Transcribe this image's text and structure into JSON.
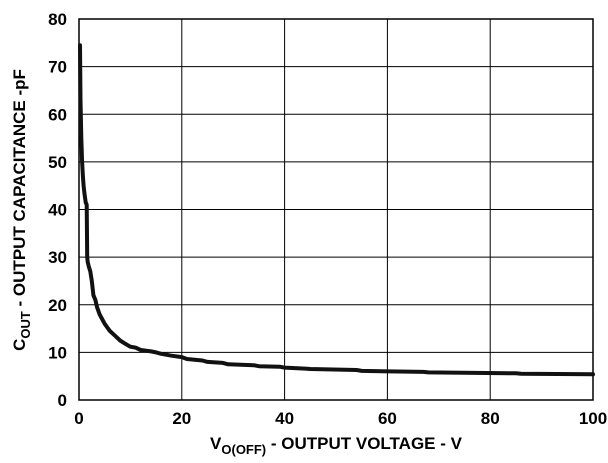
{
  "chart_data": {
    "type": "line",
    "title": "",
    "xlabel": {
      "main": "V",
      "sub": "O(OFF)",
      "rest": " - OUTPUT VOLTAGE - V"
    },
    "ylabel": {
      "main": "C",
      "sub": "OUT",
      "rest": " - OUTPUT CAPACITANCE -pF"
    },
    "xlim": [
      0,
      100
    ],
    "ylim": [
      0,
      80
    ],
    "xticks": [
      0,
      20,
      40,
      60,
      80,
      100
    ],
    "yticks": [
      0,
      10,
      20,
      30,
      40,
      50,
      60,
      70,
      80
    ],
    "grid": true,
    "line_color": "#111111",
    "series": [
      {
        "x": [
          0.2,
          0.3,
          0.45,
          0.6,
          0.75,
          0.9,
          1.0,
          1.1,
          1.3,
          1.5,
          1.6,
          1.7,
          1.9,
          2.2,
          2.5,
          2.8,
          3.2,
          3.5,
          4.0,
          4.5,
          5.0,
          6.0,
          7.0,
          8.0,
          9.0,
          10.0,
          11.0,
          12.0,
          14.0,
          15.0,
          16.0,
          18.0,
          20.0,
          21.0,
          24.0,
          25.0,
          28.0,
          29.0,
          34.0,
          35.0,
          39.0,
          40.0,
          44.0,
          45.0,
          54.0,
          55.0,
          67.0,
          68.0,
          85.0,
          86.0,
          100.0
        ],
        "y": [
          74.5,
          63.0,
          55.0,
          50.0,
          47.0,
          45.0,
          44.0,
          43.0,
          41.5,
          41.0,
          30.0,
          29.0,
          28.0,
          27.0,
          25.0,
          22.0,
          21.0,
          19.5,
          18.0,
          17.0,
          16.0,
          14.5,
          13.5,
          12.5,
          11.8,
          11.2,
          11.0,
          10.5,
          10.2,
          10.0,
          9.7,
          9.3,
          9.0,
          8.6,
          8.3,
          8.0,
          7.8,
          7.5,
          7.3,
          7.1,
          7.0,
          6.8,
          6.6,
          6.5,
          6.3,
          6.1,
          5.9,
          5.8,
          5.6,
          5.5,
          5.4
        ]
      }
    ]
  }
}
